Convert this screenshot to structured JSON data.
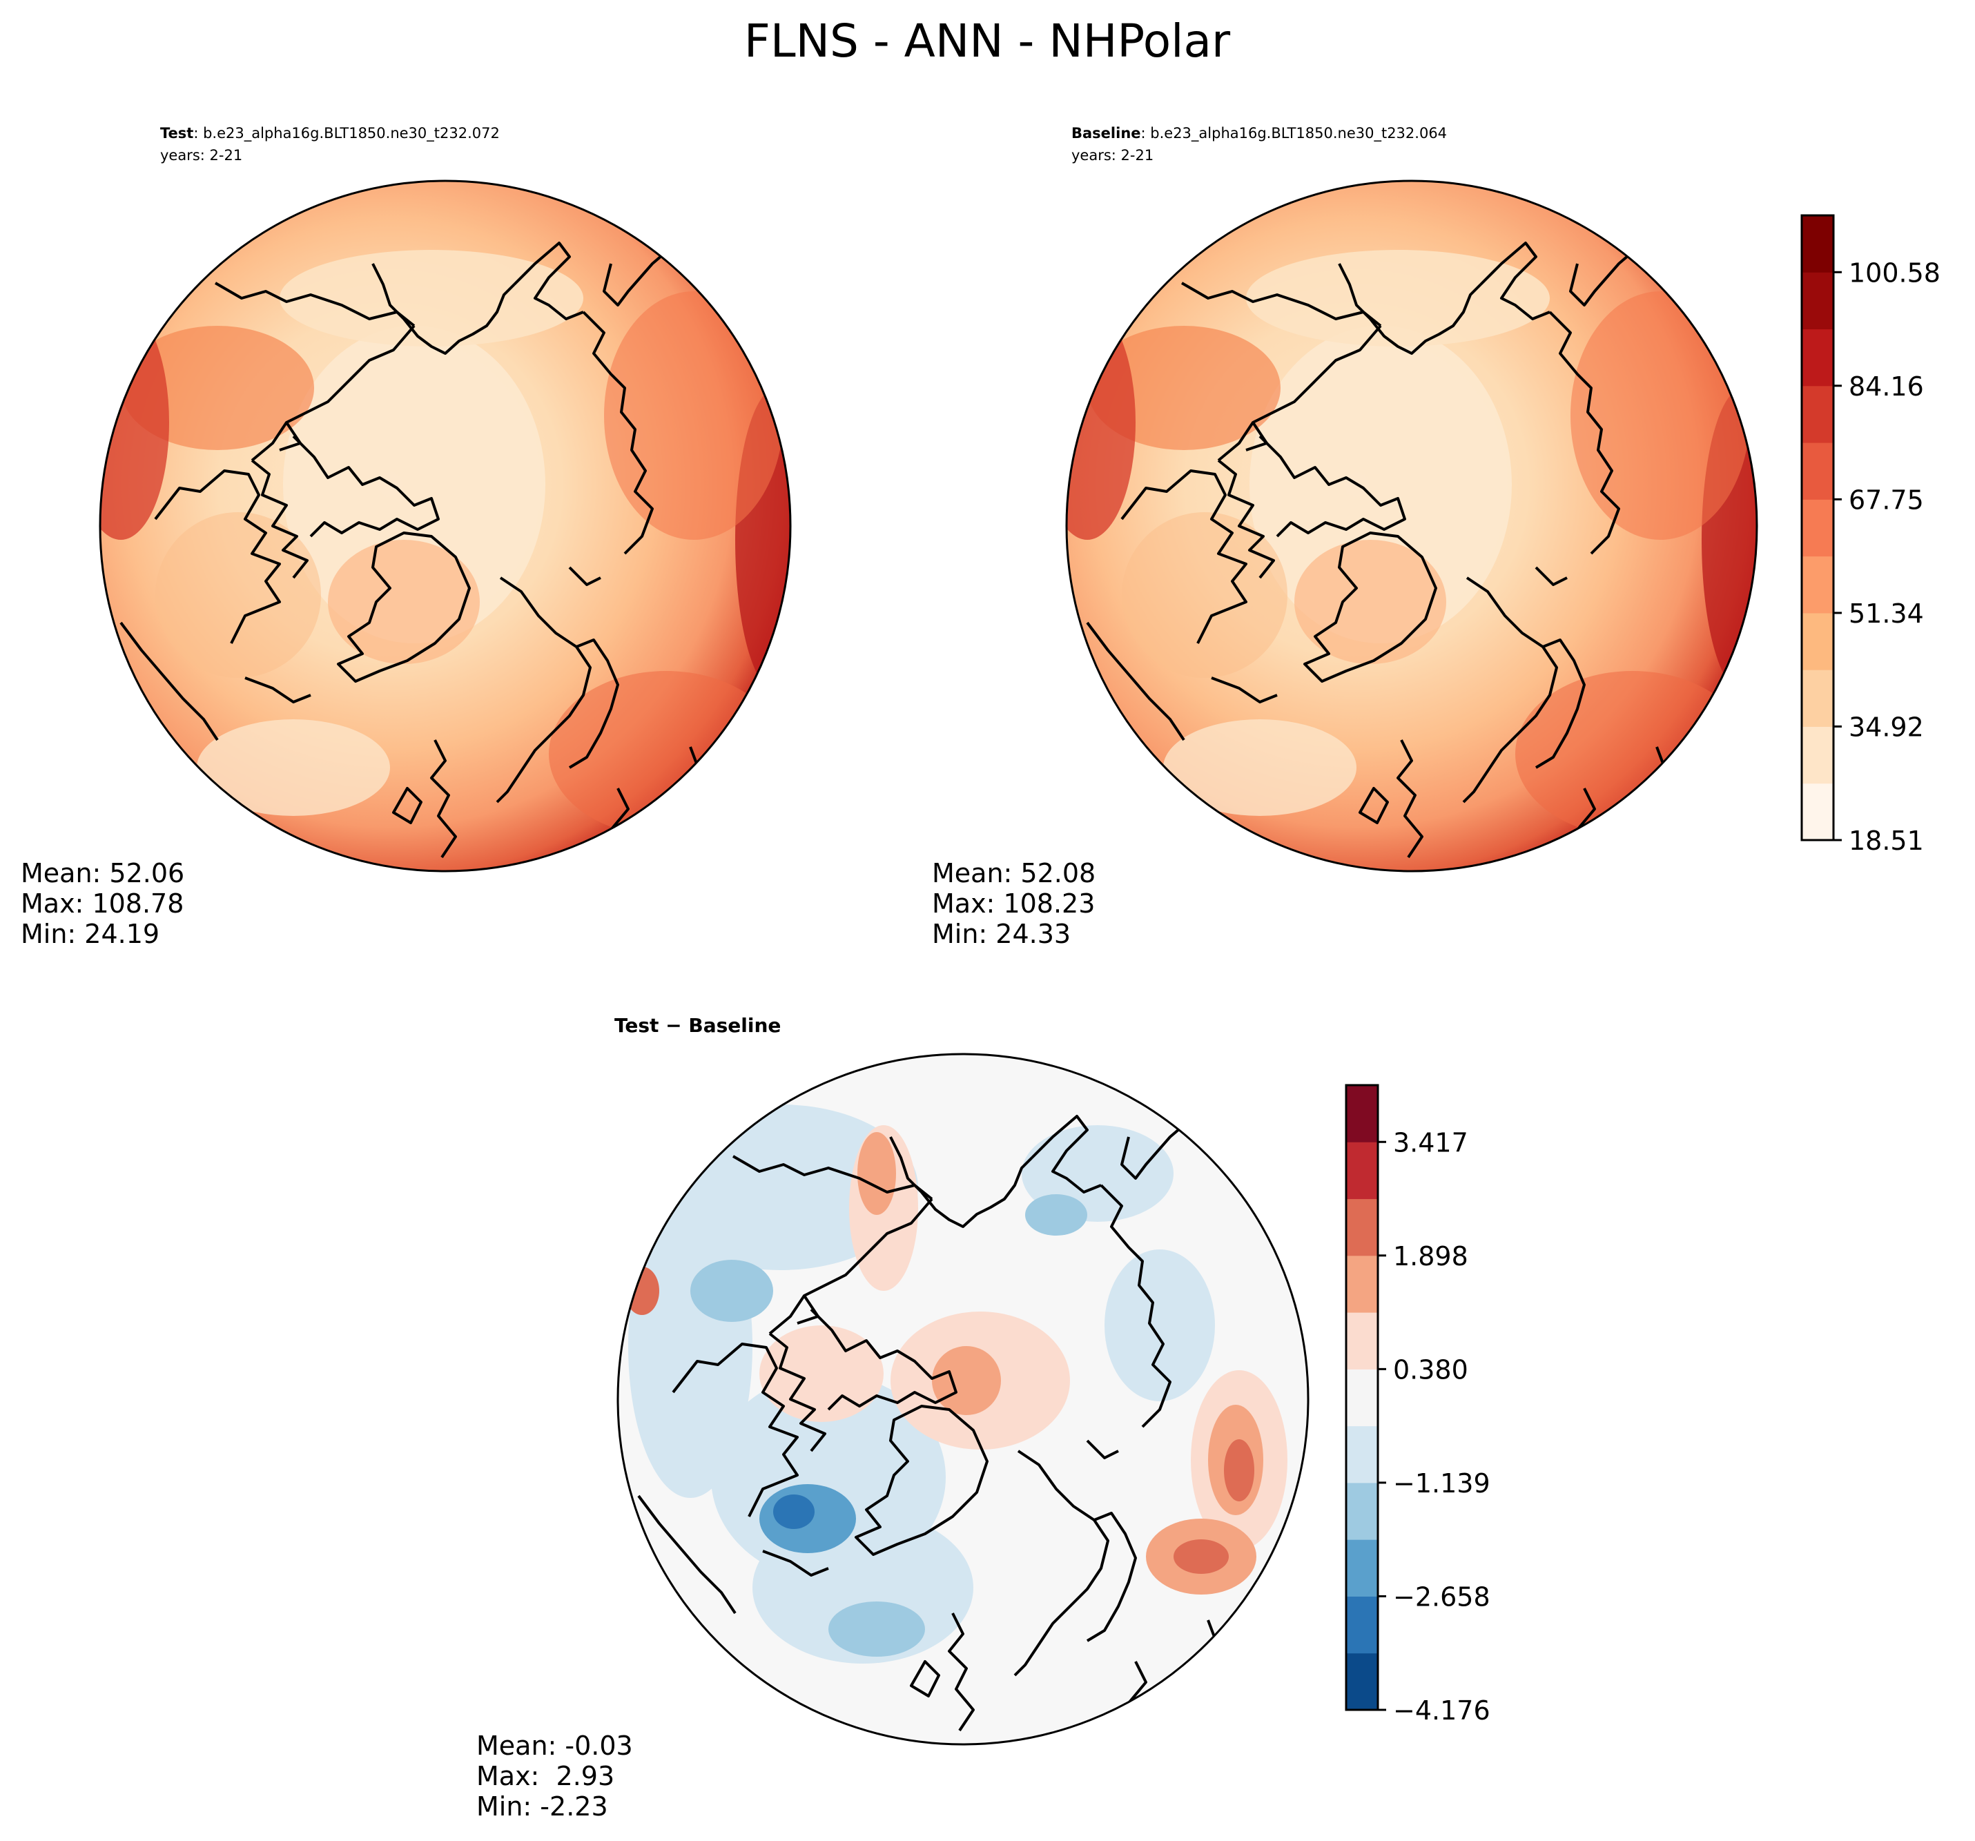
{
  "figure": {
    "title": "FLNS - ANN - NHPolar"
  },
  "panels": {
    "test": {
      "label_bold": "Test",
      "label_rest": ": b.e23_alpha16g.BLT1850.ne30_t232.072",
      "years": "years: 2-21",
      "stats": {
        "mean": "Mean: 52.06",
        "max": "Max: 108.78",
        "min": "Min: 24.19"
      }
    },
    "baseline": {
      "label_bold": "Baseline",
      "label_rest": ": b.e23_alpha16g.BLT1850.ne30_t232.064",
      "years": "years: 2-21",
      "stats": {
        "mean": "Mean: 52.08",
        "max": "Max: 108.23",
        "min": "Min: 24.33"
      }
    },
    "diff": {
      "title": "Test − Baseline",
      "stats": {
        "mean": "Mean: -0.03",
        "max": "Max:  2.93",
        "min": "Min: -2.23"
      }
    }
  },
  "colorbars": {
    "main": {
      "ticks": [
        "18.51",
        "34.92",
        "51.34",
        "67.75",
        "84.16",
        "100.58"
      ],
      "colors": [
        "#fff5eb",
        "#fee5c8",
        "#fdd0a2",
        "#fdb97f",
        "#fc9c6a",
        "#f67b53",
        "#e85a3e",
        "#d43a2b",
        "#bd1a1a",
        "#9a0a0a",
        "#7d0000"
      ]
    },
    "diff": {
      "ticks": [
        "−4.176",
        "−2.658",
        "−1.139",
        "0.380",
        "1.898",
        "3.417"
      ],
      "colors": [
        "#0b4a8a",
        "#2b75b5",
        "#5aa0cc",
        "#9ecae1",
        "#d4e6f1",
        "#f5f5f5",
        "#fbdccf",
        "#f4a582",
        "#de6c54",
        "#c02a30",
        "#7f0a22"
      ]
    }
  },
  "chart_data": {
    "type": "heatmap",
    "title": "FLNS - ANN - NHPolar",
    "projection": "North Polar Stereographic",
    "panels": [
      {
        "name": "Test",
        "case": "b.e23_alpha16g.BLT1850.ne30_t232.072",
        "years": "2-21",
        "mean": 52.06,
        "max": 108.78,
        "min": 24.19,
        "levels": [
          18.51,
          26.72,
          34.92,
          43.13,
          51.34,
          59.54,
          67.75,
          75.96,
          84.16,
          92.37,
          100.58,
          108.78
        ]
      },
      {
        "name": "Baseline",
        "case": "b.e23_alpha16g.BLT1850.ne30_t232.064",
        "years": "2-21",
        "mean": 52.08,
        "max": 108.23,
        "min": 24.33,
        "levels": [
          18.51,
          26.72,
          34.92,
          43.13,
          51.34,
          59.54,
          67.75,
          75.96,
          84.16,
          92.37,
          100.58,
          108.78
        ]
      },
      {
        "name": "Test - Baseline",
        "mean": -0.03,
        "max": 2.93,
        "min": -2.23,
        "levels": [
          -4.176,
          -3.417,
          -2.658,
          -1.898,
          -1.139,
          -0.38,
          0.38,
          1.139,
          1.898,
          2.658,
          3.417,
          4.176
        ]
      }
    ]
  }
}
